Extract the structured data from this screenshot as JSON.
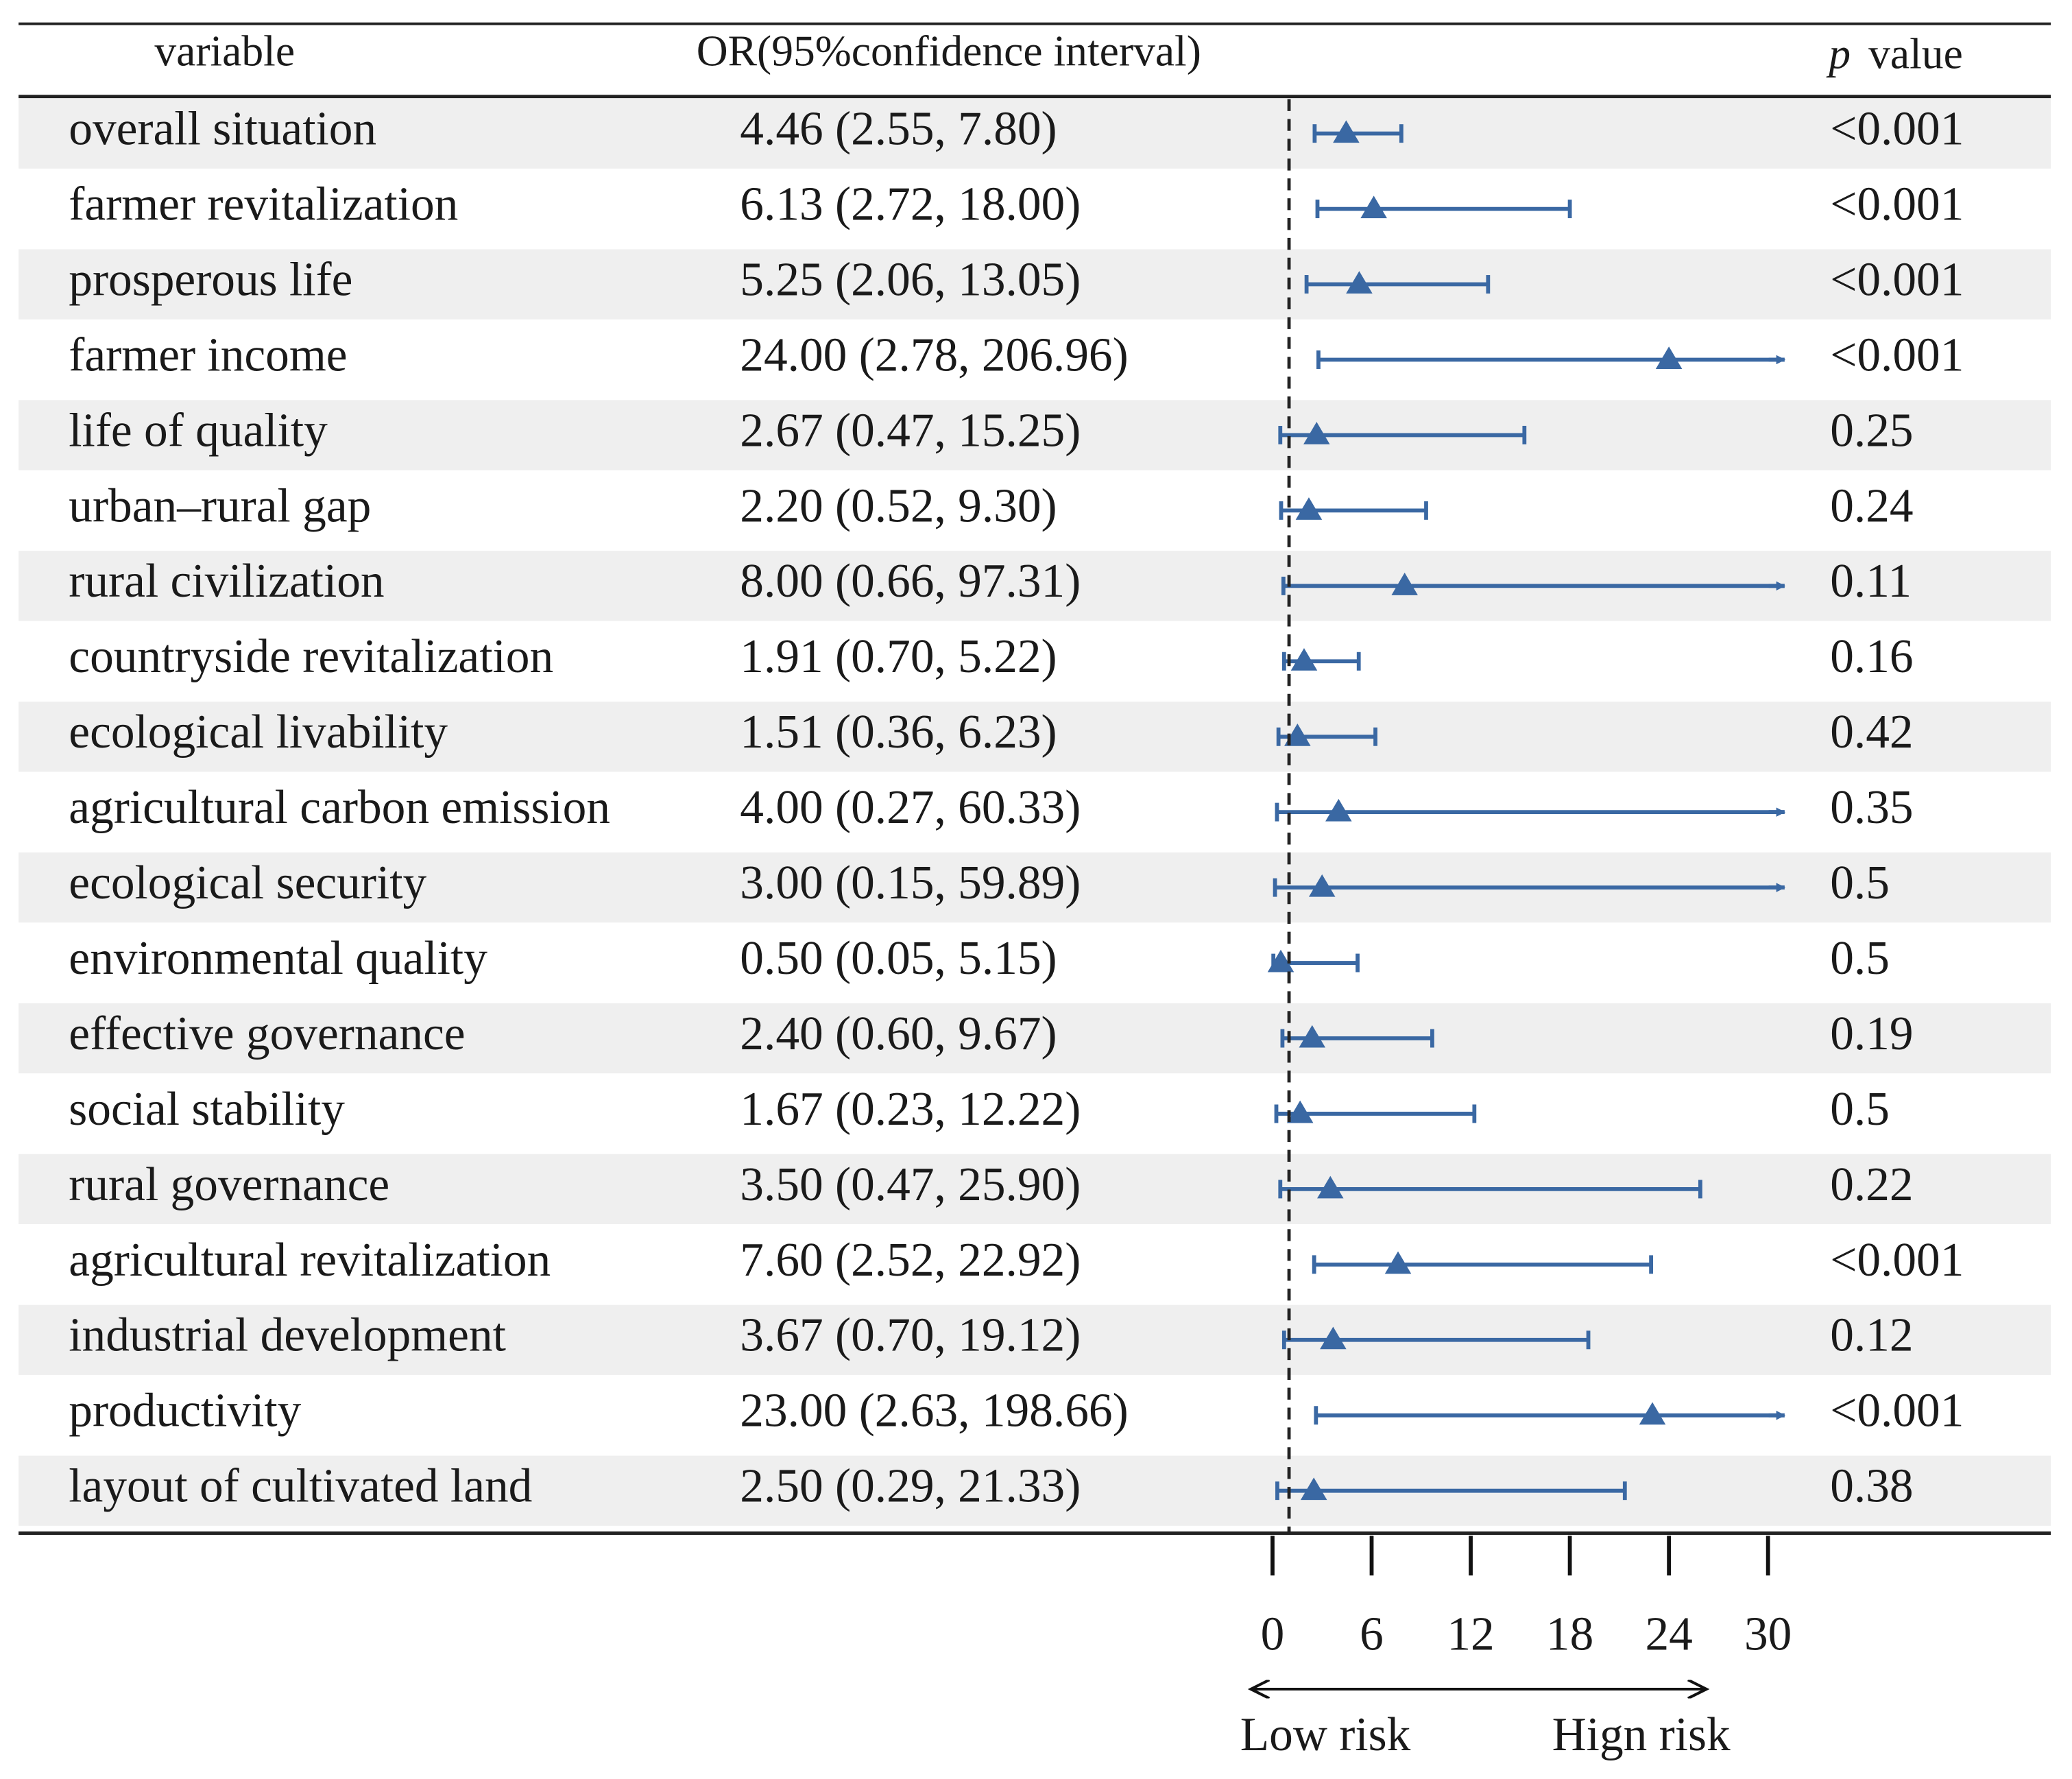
{
  "chart_data": {
    "type": "forest",
    "headers": {
      "variable": "variable",
      "ci": "OR(95%confidence interval)",
      "p_symbol": "p",
      "p_word": "value"
    },
    "categories": [
      "overall situation",
      "farmer revitalization",
      "prosperous life",
      "farmer income",
      "life of quality",
      "urban–rural gap",
      "rural civilization",
      "countryside revitalization",
      "ecological livability",
      "agricultural carbon emission",
      "ecological security",
      "environmental quality",
      "effective governance",
      "social stability",
      "rural governance",
      "agricultural revitalization",
      "industrial development",
      "productivity",
      "layout of cultivated land"
    ],
    "or": [
      4.46,
      6.13,
      5.25,
      24.0,
      2.67,
      2.2,
      8.0,
      1.91,
      1.51,
      4.0,
      3.0,
      0.5,
      2.4,
      1.67,
      3.5,
      7.6,
      3.67,
      23.0,
      2.5
    ],
    "lower": [
      2.55,
      2.72,
      2.06,
      2.78,
      0.47,
      0.52,
      0.66,
      0.7,
      0.36,
      0.27,
      0.15,
      0.05,
      0.6,
      0.23,
      0.47,
      2.52,
      0.7,
      2.63,
      0.29
    ],
    "upper": [
      7.8,
      18.0,
      13.05,
      206.96,
      15.25,
      9.3,
      97.31,
      5.22,
      6.23,
      60.33,
      59.89,
      5.15,
      9.67,
      12.22,
      25.9,
      22.92,
      19.12,
      198.66,
      21.33
    ],
    "ci_labels": [
      "4.46 (2.55, 7.80)",
      "6.13 (2.72, 18.00)",
      "5.25 (2.06, 13.05)",
      "24.00 (2.78, 206.96)",
      "2.67 (0.47, 15.25)",
      "2.20 (0.52, 9.30)",
      "8.00 (0.66, 97.31)",
      "1.91 (0.70, 5.22)",
      "1.51 (0.36, 6.23)",
      "4.00 (0.27, 60.33)",
      "3.00 (0.15, 59.89)",
      "0.50 (0.05, 5.15)",
      "2.40 (0.60, 9.67)",
      "1.67 (0.23, 12.22)",
      "3.50 (0.47, 25.90)",
      "7.60 (2.52, 22.92)",
      "3.67 (0.70, 19.12)",
      "23.00 (2.63, 198.66)",
      "2.50 (0.29, 21.33)"
    ],
    "p_values": [
      "<0.001",
      "<0.001",
      "<0.001",
      "<0.001",
      "0.25",
      "0.24",
      "0.11",
      "0.16",
      "0.42",
      "0.35",
      "0.5",
      "0.5",
      "0.19",
      "0.5",
      "0.22",
      "<0.001",
      "0.12",
      "<0.001",
      "0.38"
    ],
    "color": "#3a68a3",
    "reference": 1,
    "xlim": [
      0,
      31
    ],
    "xticks": [
      0,
      6,
      12,
      18,
      24,
      30
    ],
    "direction_labels": [
      "Low risk",
      "Hign risk"
    ]
  }
}
